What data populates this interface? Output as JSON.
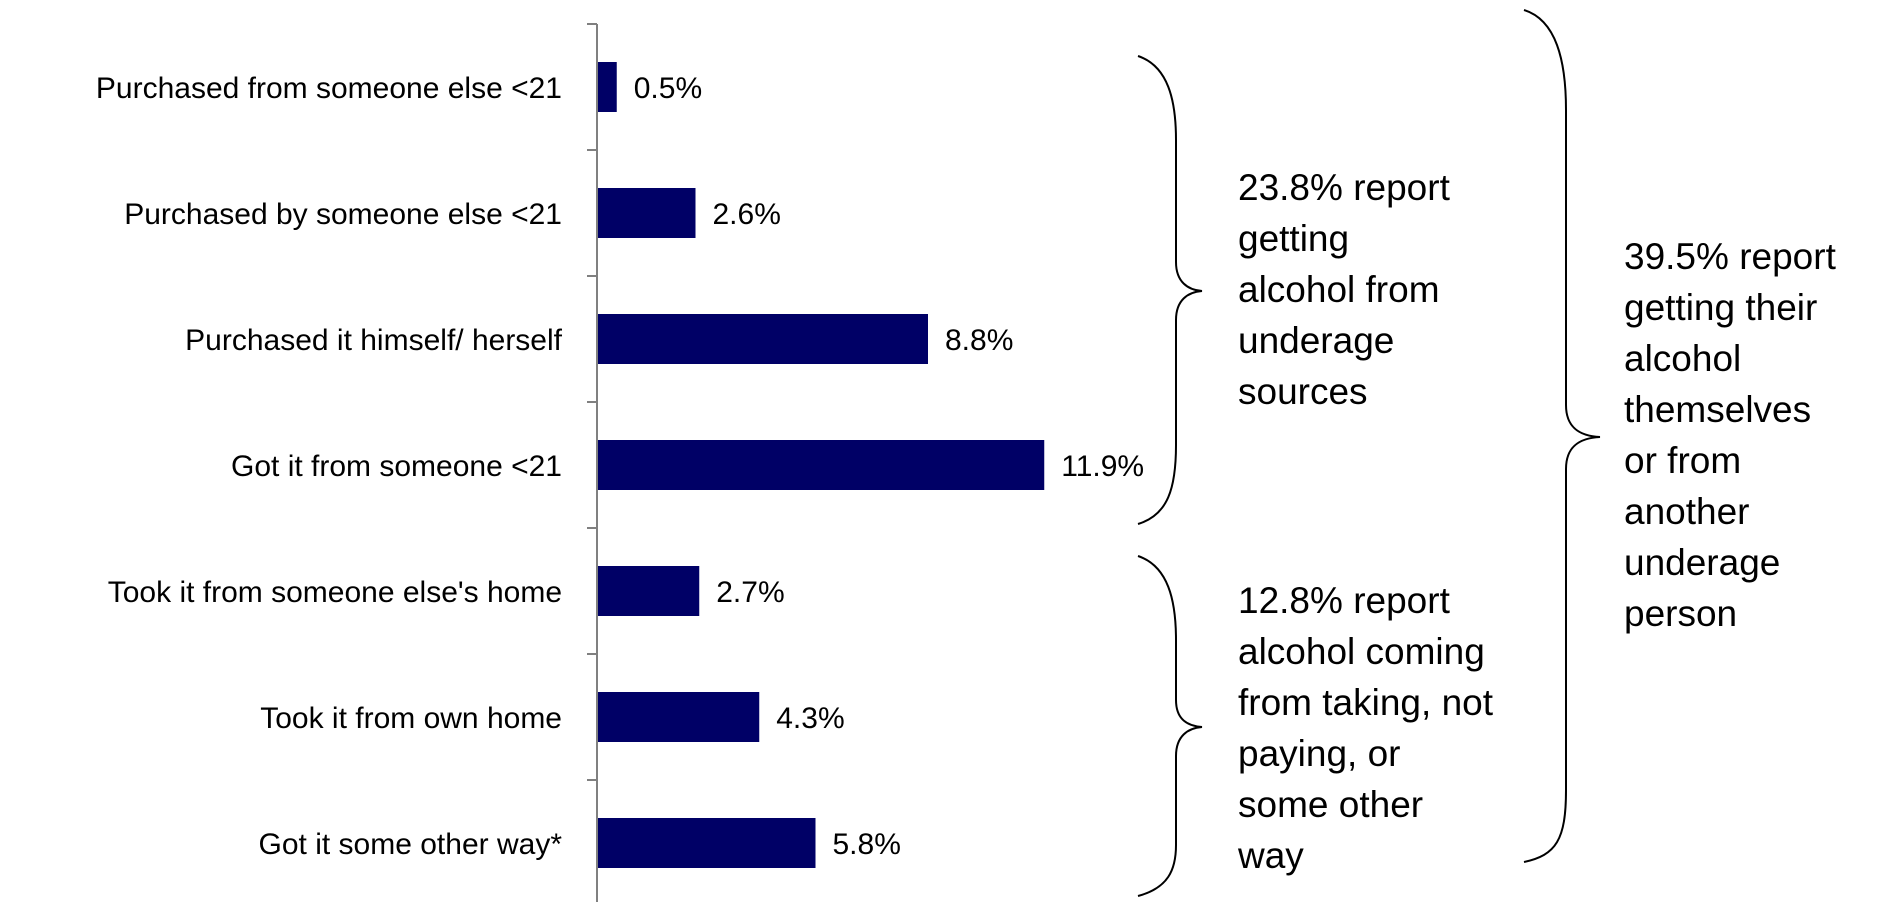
{
  "chart_data": {
    "type": "bar",
    "orientation": "horizontal",
    "categories": [
      "Purchased from someone else <21",
      "Purchased by someone else <21",
      "Purchased it himself/ herself",
      "Got it from someone <21",
      "Took it from someone else's home",
      "Took it from own home",
      "Got it some other way*"
    ],
    "values": [
      0.5,
      2.6,
      8.8,
      11.9,
      2.7,
      4.3,
      5.8
    ],
    "value_labels": [
      "0.5%",
      "2.6%",
      "8.8%",
      "11.9%",
      "2.7%",
      "4.3%",
      "5.8%"
    ],
    "unit": "%",
    "xlim": [
      0,
      15
    ],
    "grid": false,
    "legend": "none",
    "bar_color": "#000066"
  },
  "annotations": {
    "underage": {
      "lines": [
        "23.8% report",
        "getting",
        "alcohol from",
        "underage",
        "sources"
      ]
    },
    "taking": {
      "lines": [
        "12.8% report",
        "alcohol coming",
        "from taking, not",
        "paying, or",
        "some other",
        "way"
      ]
    },
    "overall": {
      "lines": [
        "39.5% report",
        "getting their",
        "alcohol",
        "themselves",
        "or from",
        "another",
        "underage",
        "person"
      ]
    }
  }
}
